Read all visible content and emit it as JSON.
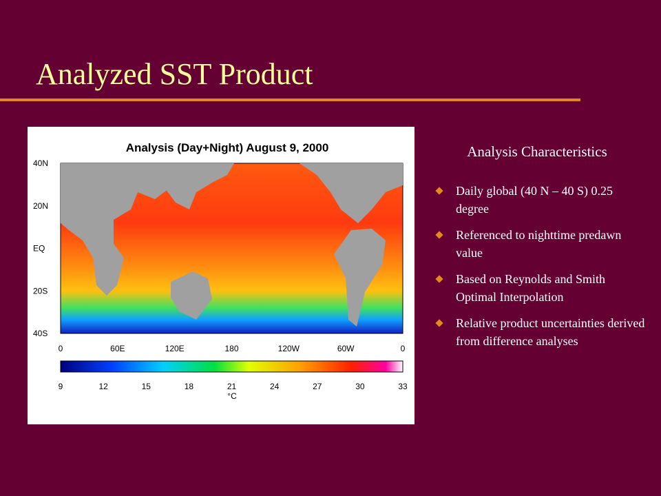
{
  "slide": {
    "title": "Analyzed SST Product"
  },
  "figure": {
    "title": "Analysis (Day+Night) August 9, 2000",
    "lat_labels": [
      "40N",
      "20N",
      "EQ",
      "20S",
      "40S"
    ],
    "lon_labels": [
      "0",
      "60E",
      "120E",
      "180",
      "120W",
      "60W",
      "0"
    ],
    "colorbar": {
      "ticks": [
        9,
        12,
        15,
        18,
        21,
        24,
        27,
        30,
        33
      ],
      "unit": "°C"
    }
  },
  "sidebar": {
    "heading": "Analysis Characteristics",
    "bullets": [
      "Daily global (40 N – 40 S) 0.25 degree",
      "Referenced to nighttime predawn value",
      "Based on Reynolds and Smith Optimal Interpolation",
      "Relative product uncertainties derived from difference analyses"
    ]
  }
}
